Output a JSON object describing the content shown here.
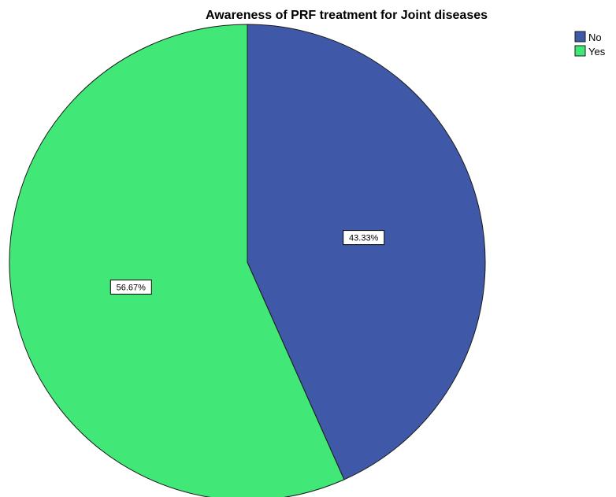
{
  "chart_data": {
    "type": "pie",
    "title": "Awareness of PRF treatment for Joint diseases",
    "categories": [
      "No",
      "Yes"
    ],
    "values": [
      43.33,
      56.67
    ],
    "data_labels": [
      "43.33%",
      "56.67%"
    ],
    "colors": [
      "#3F59A8",
      "#41E878"
    ],
    "start_angle": "12 o'clock",
    "direction": "clockwise",
    "legend": {
      "position": "top-right",
      "entries": [
        "No",
        "Yes"
      ]
    }
  }
}
